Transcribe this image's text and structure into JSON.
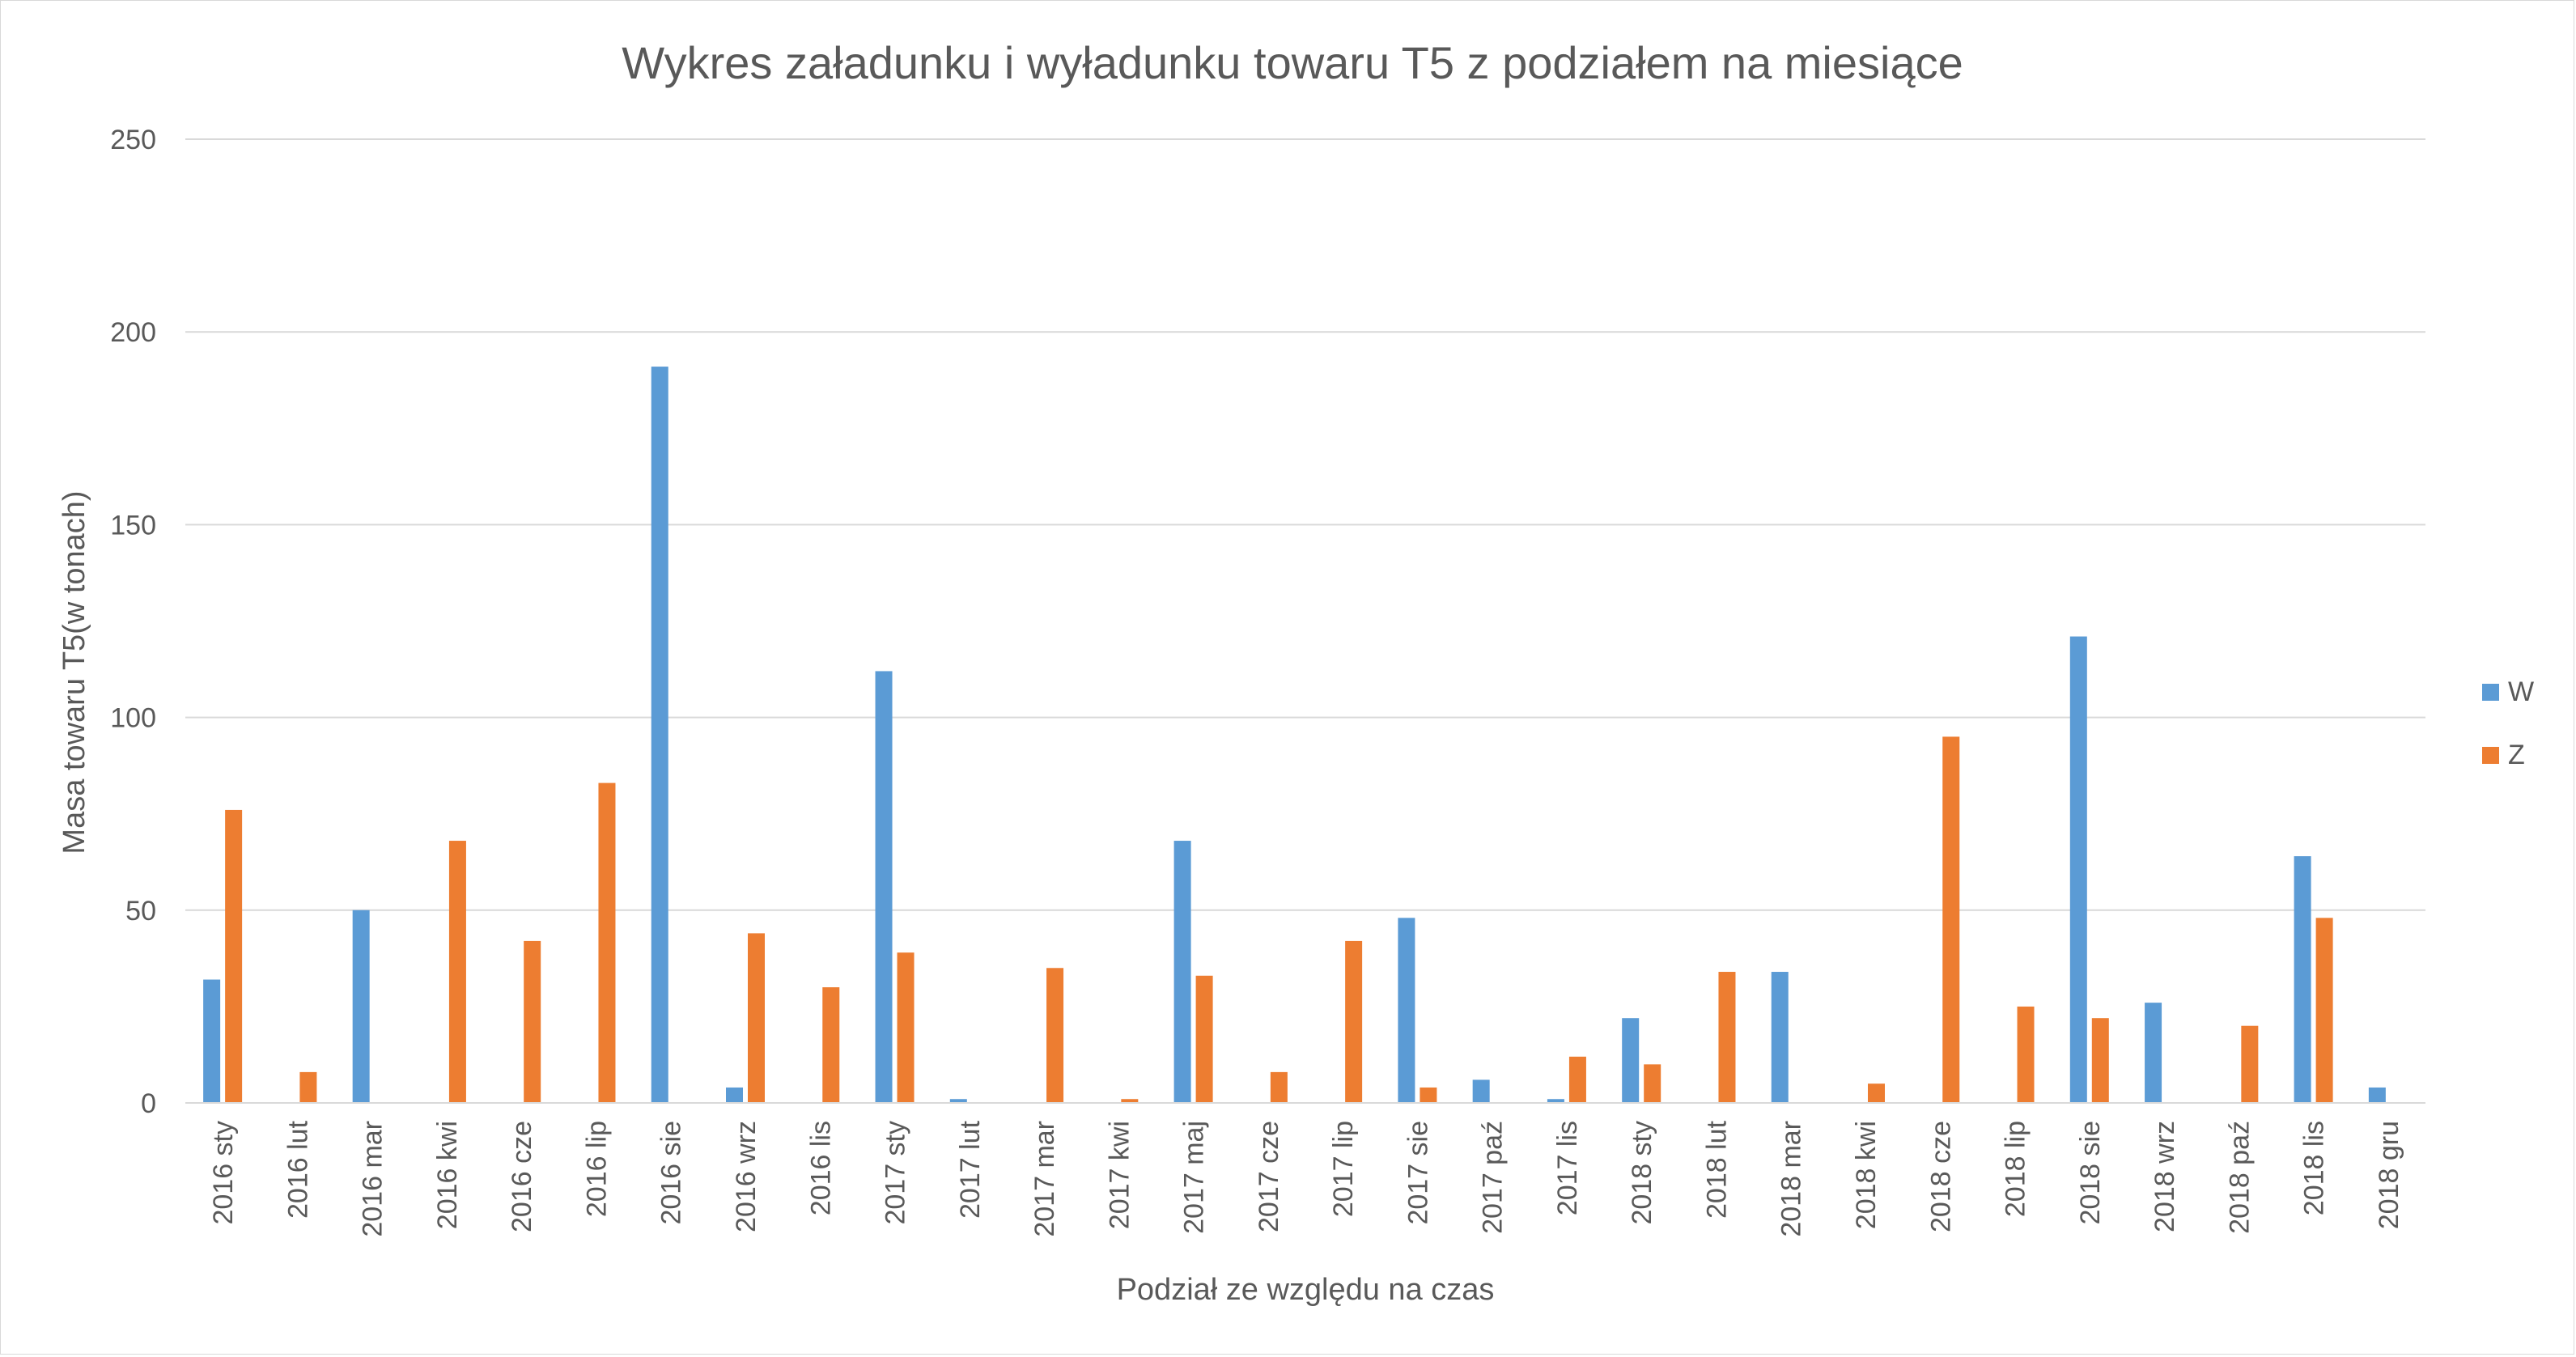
{
  "chart_data": {
    "type": "bar",
    "title": "Wykres załadunku i wyładunku towaru T5 z podziałem na miesiące",
    "xlabel": "Podział ze względu na czas",
    "ylabel": "Masa towaru T5(w tonach)",
    "ylim": [
      0,
      250
    ],
    "yticks": [
      0,
      50,
      100,
      150,
      200,
      250
    ],
    "grid": true,
    "legend_position": "right",
    "categories": [
      "2016 sty",
      "2016 lut",
      "2016 mar",
      "2016 kwi",
      "2016 cze",
      "2016 lip",
      "2016 sie",
      "2016 wrz",
      "2016 lis",
      "2017 sty",
      "2017 lut",
      "2017 mar",
      "2017 kwi",
      "2017 maj",
      "2017 cze",
      "2017 lip",
      "2017 sie",
      "2017 paź",
      "2017 lis",
      "2018 sty",
      "2018 lut",
      "2018 mar",
      "2018 kwi",
      "2018 cze",
      "2018 lip",
      "2018 sie",
      "2018 wrz",
      "2018 paź",
      "2018 lis",
      "2018 gru"
    ],
    "series": [
      {
        "name": "W",
        "color": "#5b9bd5",
        "values": [
          32,
          0,
          50,
          0,
          0,
          0,
          191,
          4,
          0,
          112,
          1,
          0,
          0,
          68,
          0,
          0,
          48,
          6,
          1,
          22,
          0,
          34,
          0,
          0,
          0,
          121,
          26,
          0,
          64,
          4
        ]
      },
      {
        "name": "Z",
        "color": "#ed7d31",
        "values": [
          76,
          8,
          0,
          68,
          42,
          83,
          0,
          44,
          30,
          39,
          0,
          35,
          1,
          33,
          8,
          42,
          4,
          0,
          12,
          10,
          34,
          0,
          5,
          95,
          25,
          22,
          0,
          20,
          48,
          0
        ]
      }
    ]
  }
}
